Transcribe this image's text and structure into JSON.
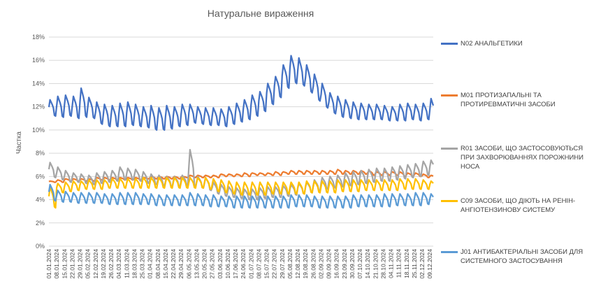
{
  "chart_data": {
    "type": "line",
    "title": "Натуральне вираження",
    "ylabel": "Частка",
    "xlabel": "",
    "ylim": [
      0,
      18
    ],
    "ytick_labels": [
      "0%",
      "2%",
      "4%",
      "6%",
      "8%",
      "10%",
      "12%",
      "14%",
      "16%",
      "18%"
    ],
    "x_tick_labels": [
      "01.01.2024",
      "08.01.2024",
      "15.01.2024",
      "22.01.2024",
      "29.01.2024",
      "05.02.2024",
      "12.02.2024",
      "19.02.2024",
      "26.02.2024",
      "04.03.2024",
      "11.03.2024",
      "18.03.2024",
      "25.03.2024",
      "01.04.2024",
      "08.04.2024",
      "15.04.2024",
      "22.04.2024",
      "29.04.2024",
      "06.05.2024",
      "13.05.2024",
      "20.05.2024",
      "27.05.2024",
      "03.06.2024",
      "10.06.2024",
      "17.06.2024",
      "24.06.2024",
      "01.07.2024",
      "08.07.2024",
      "15.07.2024",
      "22.07.2024",
      "29.07.2024",
      "05.08.2024",
      "12.08.2024",
      "19.08.2024",
      "26.08.2024",
      "02.09.2024",
      "09.09.2024",
      "16.09.2024",
      "23.09.2024",
      "30.09.2024",
      "07.10.2024",
      "14.10.2024",
      "21.10.2024",
      "28.10.2024",
      "04.11.2024",
      "11.11.2024",
      "18.11.2024",
      "25.11.2024",
      "02.12.2024",
      "09.12.2024"
    ],
    "grid": true,
    "legend_position": "right",
    "series": [
      {
        "name": "N02 АНАЛЬГЕТИКИ",
        "color": "#4472C4",
        "weekly_peak": [
          12.6,
          12.9,
          13.0,
          12.9,
          13.6,
          12.8,
          12.4,
          12.2,
          12.1,
          12.3,
          12.4,
          12.2,
          12.0,
          12.1,
          11.9,
          12.1,
          12.0,
          12.2,
          12.2,
          12.0,
          11.9,
          11.9,
          11.8,
          12.0,
          12.3,
          12.6,
          13.0,
          13.3,
          14.0,
          14.6,
          15.6,
          16.4,
          16.2,
          15.6,
          14.8,
          14.0,
          13.2,
          12.9,
          12.6,
          12.4,
          12.3,
          12.2,
          12.2,
          12.1,
          12.0,
          12.2,
          12.3,
          12.2,
          12.3,
          12.7
        ],
        "weekly_base": [
          11.2,
          11.1,
          11.2,
          11.0,
          11.1,
          11.0,
          10.5,
          10.3,
          10.3,
          10.3,
          10.4,
          10.3,
          10.2,
          10.0,
          10.0,
          10.1,
          10.3,
          10.4,
          10.6,
          10.5,
          10.4,
          10.4,
          10.3,
          10.5,
          10.7,
          10.9,
          11.2,
          11.6,
          12.2,
          12.8,
          13.6,
          14.0,
          13.8,
          13.2,
          12.5,
          11.9,
          11.4,
          11.1,
          11.0,
          10.9,
          10.9,
          10.9,
          10.9,
          10.8,
          10.8,
          10.8,
          10.9,
          10.8,
          10.9,
          10.7
        ]
      },
      {
        "name": "M01 ПРОТИЗАПАЛЬНІ ТА ПРОТИРЕВМАТИЧНІ ЗАСОБИ",
        "color": "#ED7D31",
        "weekly_peak": [
          5.6,
          5.7,
          5.8,
          5.8,
          5.8,
          5.8,
          5.9,
          5.9,
          5.9,
          5.9,
          5.9,
          5.9,
          5.9,
          6.0,
          6.0,
          6.0,
          6.0,
          6.0,
          6.1,
          6.1,
          6.1,
          6.1,
          6.2,
          6.2,
          6.2,
          6.3,
          6.3,
          6.3,
          6.3,
          6.4,
          6.4,
          6.5,
          6.5,
          6.5,
          6.5,
          6.5,
          6.5,
          6.6,
          6.5,
          6.5,
          6.5,
          6.5,
          6.4,
          6.4,
          6.4,
          6.4,
          6.3,
          6.3,
          6.2,
          6.1
        ],
        "weekly_base": [
          5.5,
          5.5,
          5.6,
          5.6,
          5.6,
          5.6,
          5.7,
          5.7,
          5.7,
          5.7,
          5.7,
          5.7,
          5.8,
          5.8,
          5.8,
          5.8,
          5.8,
          5.9,
          5.9,
          5.9,
          5.9,
          5.9,
          6.0,
          6.0,
          6.0,
          6.0,
          6.1,
          6.1,
          6.1,
          6.1,
          6.2,
          6.2,
          6.2,
          6.2,
          6.2,
          6.2,
          6.2,
          6.2,
          6.2,
          6.2,
          6.2,
          6.1,
          6.1,
          6.1,
          6.1,
          6.0,
          6.0,
          6.0,
          5.9,
          5.9
        ]
      },
      {
        "name": "R01 ЗАСОБИ, ЩО ЗАСТОСОВУЮТЬСЯ ПРИ ЗАХВОРЮВАННЯХ ПОРОЖНИНИ НОСА",
        "color": "#A5A5A5",
        "weekly_peak": [
          7.2,
          6.8,
          6.5,
          6.3,
          6.2,
          6.1,
          6.3,
          6.4,
          6.5,
          6.8,
          6.7,
          6.6,
          6.4,
          6.2,
          6.1,
          6.0,
          6.0,
          6.1,
          8.3,
          6.0,
          5.9,
          5.5,
          5.3,
          5.1,
          5.0,
          4.9,
          4.9,
          5.0,
          5.1,
          5.1,
          5.2,
          5.3,
          5.4,
          5.5,
          5.7,
          5.9,
          6.0,
          6.1,
          6.3,
          6.4,
          6.5,
          6.6,
          6.7,
          6.7,
          6.8,
          6.9,
          7.0,
          7.1,
          7.3,
          7.4
        ],
        "weekly_base": [
          5.9,
          5.7,
          5.5,
          5.5,
          5.4,
          5.3,
          5.4,
          5.5,
          5.6,
          5.7,
          5.7,
          5.6,
          5.4,
          5.3,
          5.2,
          5.1,
          5.1,
          5.2,
          5.1,
          5.0,
          4.8,
          4.5,
          4.3,
          4.2,
          4.1,
          4.0,
          4.0,
          4.1,
          4.2,
          4.2,
          4.3,
          4.4,
          4.5,
          4.6,
          4.7,
          4.9,
          5.0,
          5.1,
          5.2,
          5.3,
          5.4,
          5.5,
          5.6,
          5.6,
          5.7,
          5.8,
          5.9,
          6.0,
          6.1,
          6.2
        ]
      },
      {
        "name": "C09 ЗАСОБИ, ЩО ДІЮТЬ НА РЕНІН-АНГІОТЕНЗИНОВУ СИСТЕМУ",
        "color": "#FFC000",
        "weekly_peak": [
          5.1,
          5.4,
          5.5,
          5.6,
          5.6,
          5.7,
          5.7,
          5.7,
          5.8,
          5.8,
          5.8,
          5.8,
          5.9,
          5.9,
          5.9,
          5.9,
          5.9,
          5.9,
          5.9,
          5.9,
          5.9,
          5.8,
          5.7,
          5.6,
          5.5,
          5.5,
          5.5,
          5.5,
          5.5,
          5.5,
          5.5,
          5.5,
          5.5,
          5.6,
          5.6,
          5.6,
          5.6,
          5.7,
          5.7,
          5.7,
          5.7,
          5.7,
          5.7,
          5.7,
          5.7,
          5.8,
          5.8,
          5.8,
          5.7,
          5.6
        ],
        "weekly_base": [
          3.3,
          4.6,
          4.7,
          4.8,
          4.9,
          4.9,
          4.9,
          5.0,
          5.0,
          5.0,
          5.0,
          5.0,
          5.0,
          5.0,
          5.0,
          5.0,
          5.0,
          5.0,
          5.0,
          5.0,
          4.9,
          4.7,
          4.6,
          4.5,
          4.4,
          4.4,
          4.4,
          4.4,
          4.5,
          4.5,
          4.5,
          4.5,
          4.5,
          4.6,
          4.6,
          4.6,
          4.6,
          4.7,
          4.7,
          4.7,
          4.8,
          4.8,
          4.8,
          4.8,
          4.8,
          4.9,
          4.9,
          4.9,
          4.9,
          5.0
        ]
      },
      {
        "name": "J01 АНТИБАКТЕРІАЛЬНІ ЗАСОБИ ДЛЯ СИСТЕМНОГО ЗАСТОСУВАННЯ",
        "color": "#5B9BD5",
        "weekly_peak": [
          5.3,
          4.8,
          4.7,
          4.6,
          4.6,
          4.6,
          4.6,
          4.5,
          4.5,
          4.6,
          4.6,
          4.6,
          4.5,
          4.5,
          4.4,
          4.4,
          4.4,
          4.4,
          4.6,
          4.5,
          4.4,
          4.4,
          4.3,
          4.3,
          4.3,
          4.3,
          4.3,
          4.3,
          4.3,
          4.3,
          4.3,
          4.4,
          4.4,
          4.4,
          4.3,
          4.3,
          4.3,
          4.3,
          4.3,
          4.4,
          4.4,
          4.4,
          4.4,
          4.5,
          4.5,
          4.5,
          4.5,
          4.6,
          4.6,
          4.5
        ],
        "weekly_base": [
          3.9,
          3.8,
          3.8,
          3.7,
          3.7,
          3.7,
          3.7,
          3.6,
          3.6,
          3.6,
          3.6,
          3.6,
          3.6,
          3.5,
          3.5,
          3.5,
          3.5,
          3.5,
          3.5,
          3.5,
          3.4,
          3.4,
          3.4,
          3.3,
          3.3,
          3.3,
          3.3,
          3.3,
          3.3,
          3.3,
          3.3,
          3.4,
          3.4,
          3.4,
          3.3,
          3.3,
          3.3,
          3.3,
          3.3,
          3.4,
          3.4,
          3.4,
          3.4,
          3.4,
          3.5,
          3.5,
          3.5,
          3.5,
          3.6,
          3.6
        ]
      }
    ]
  }
}
